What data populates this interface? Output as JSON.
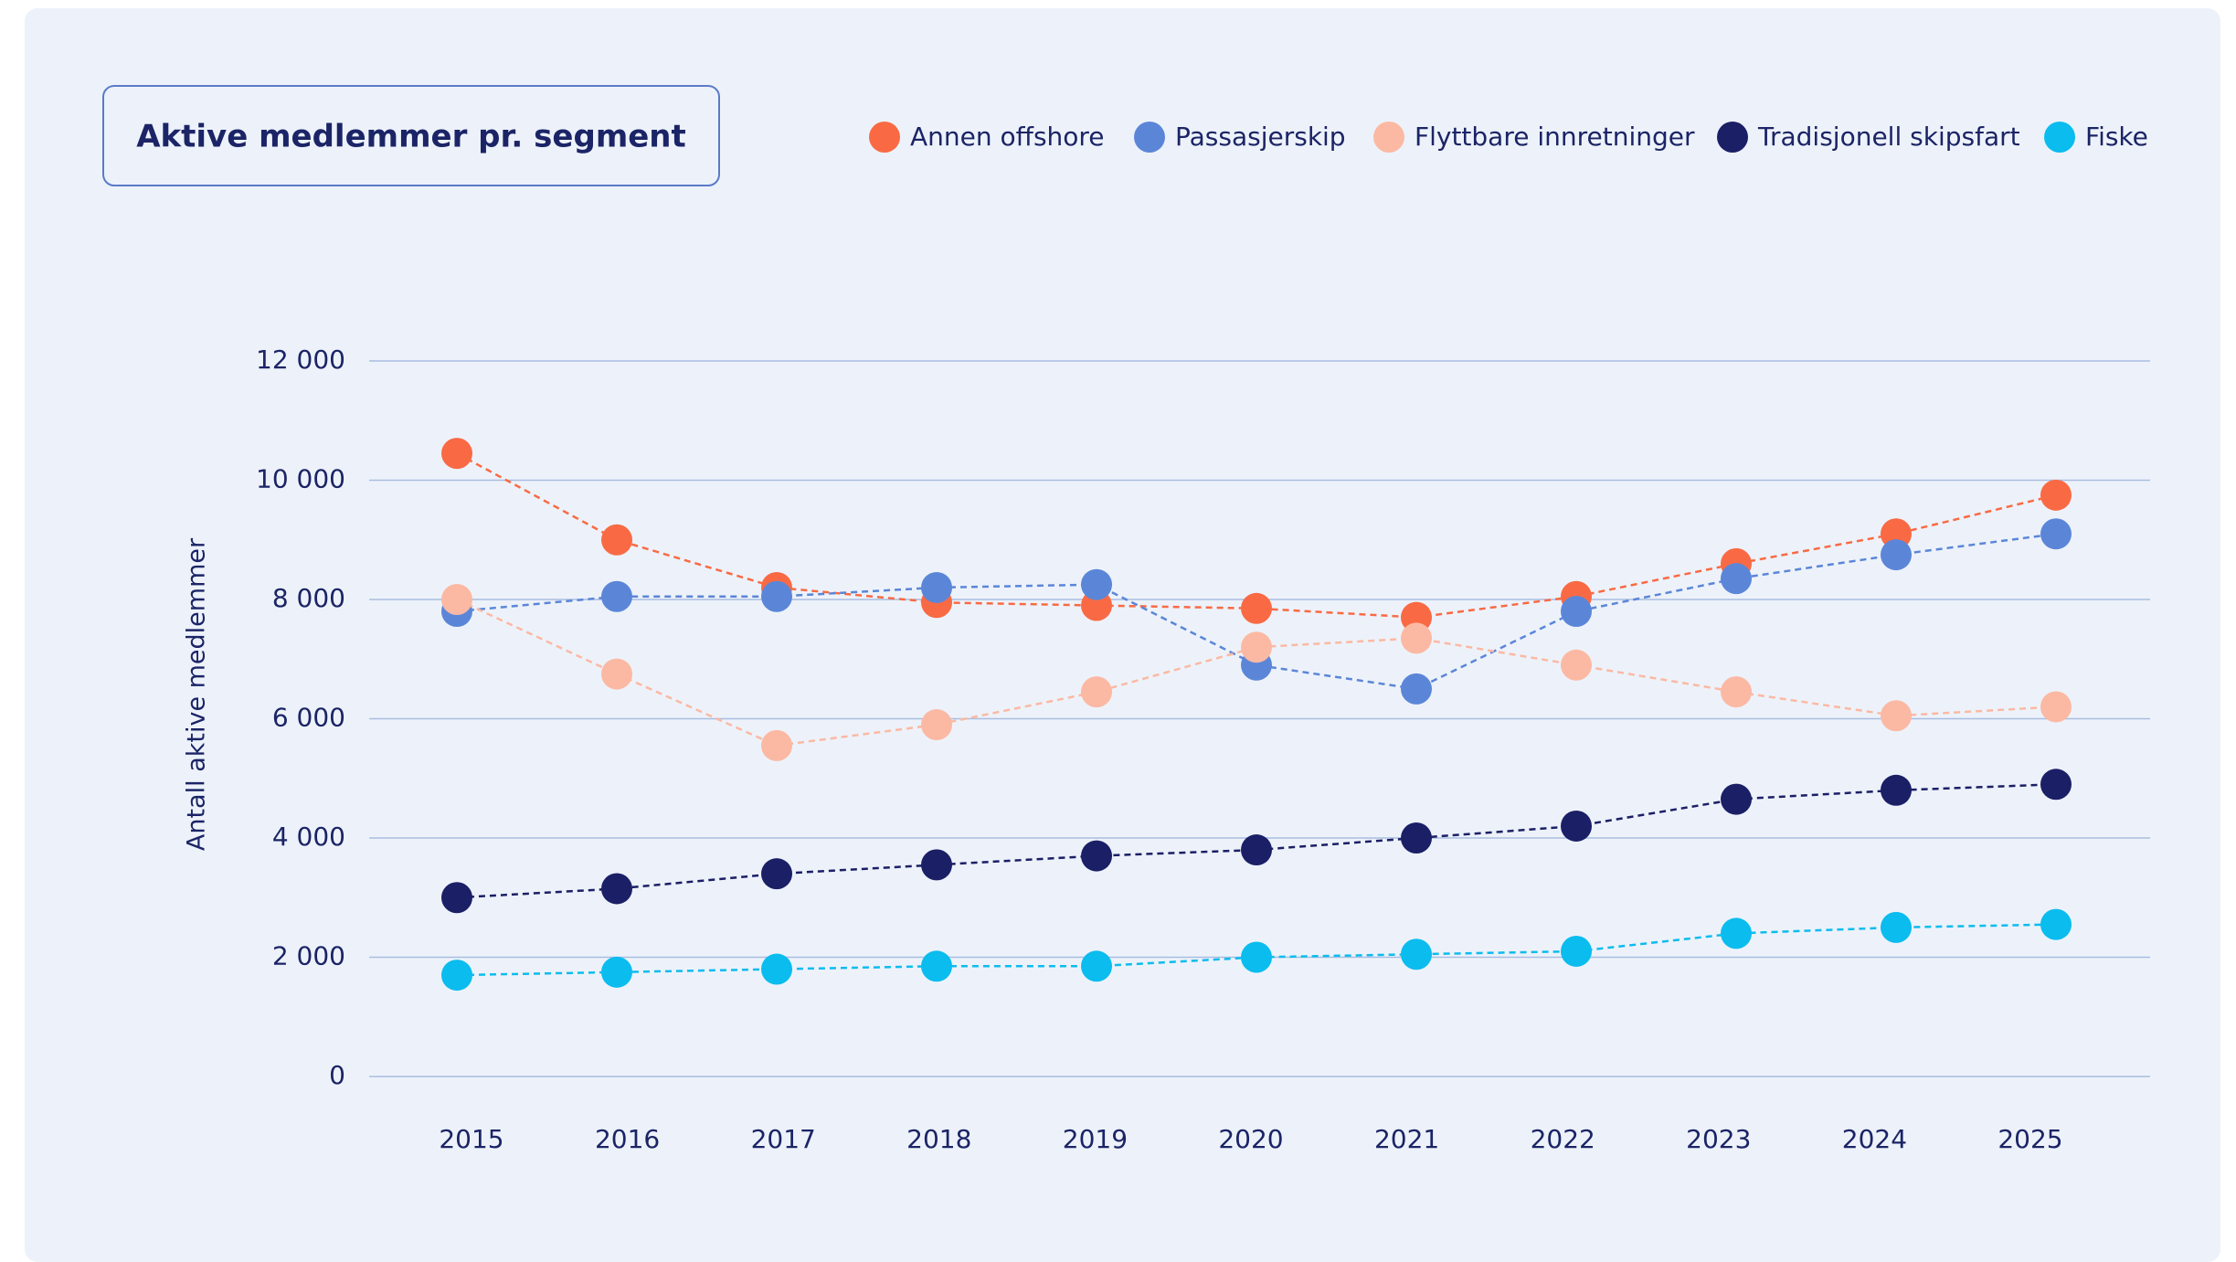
{
  "chart_data": {
    "type": "line",
    "title": "Aktive medlemmer pr. segment",
    "y_label": "Antall aktive medlemmer",
    "legend": "top-right",
    "grid": true,
    "categories": [
      "2015",
      "2016",
      "2017",
      "2018",
      "2019",
      "2020",
      "2021",
      "2022",
      "2023",
      "2024",
      "2025"
    ],
    "ylim": [
      0,
      12000
    ],
    "yticks": [
      0,
      {
        "value": 2000,
        "label": "2 000"
      },
      {
        "value": 4000,
        "label": "4 000"
      },
      {
        "value": 6000,
        "label": "6 000"
      },
      {
        "value": 8000,
        "label": "8 000"
      },
      {
        "value": 10000,
        "label": "10 000"
      },
      {
        "value": 12000,
        "label": "12 000"
      }
    ],
    "series": [
      {
        "name": "Annen offshore",
        "color": "#f96a44",
        "values": [
          10450,
          9000,
          8200,
          7950,
          7900,
          7850,
          7700,
          8050,
          8600,
          9100,
          9750
        ]
      },
      {
        "name": "Passasjerskip",
        "color": "#5b86d8",
        "values": [
          7800,
          8050,
          8050,
          8200,
          8250,
          6900,
          6500,
          7800,
          8350,
          8750,
          9100
        ]
      },
      {
        "name": "Flyttbare innretninger",
        "color": "#fbb9a3",
        "values": [
          8000,
          6750,
          5550,
          5900,
          6450,
          7200,
          7350,
          6900,
          6450,
          6050,
          6200
        ]
      },
      {
        "name": "Tradisjonell skipsfart",
        "color": "#1b1f66",
        "values": [
          3000,
          3150,
          3400,
          3550,
          3700,
          3800,
          4000,
          4200,
          4650,
          4800,
          4900
        ]
      },
      {
        "name": "Fiske",
        "color": "#0bbcee",
        "values": [
          1700,
          1750,
          1800,
          1850,
          1850,
          2000,
          2050,
          2100,
          2400,
          2500,
          2550
        ]
      }
    ]
  }
}
